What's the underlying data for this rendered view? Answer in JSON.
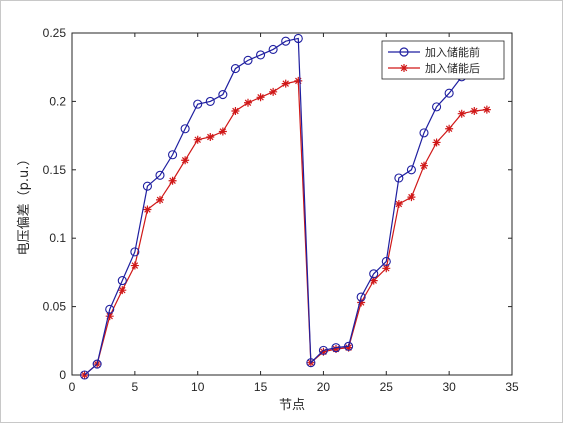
{
  "chart_data": {
    "type": "line",
    "title": "",
    "xlabel": "节点",
    "ylabel": "电压偏差（p.u.）",
    "xlim": [
      0,
      35
    ],
    "ylim": [
      0,
      0.25
    ],
    "xticks": [
      0,
      5,
      10,
      15,
      20,
      25,
      30,
      35
    ],
    "yticks": [
      0,
      0.05,
      0.1,
      0.15,
      0.2,
      0.25
    ],
    "ytick_labels": [
      "0",
      "0.05",
      "0.1",
      "0.15",
      "0.2",
      "0.25"
    ],
    "grid": false,
    "legend_position": "top-right",
    "x": [
      1,
      2,
      3,
      4,
      5,
      6,
      7,
      8,
      9,
      10,
      11,
      12,
      13,
      14,
      15,
      16,
      17,
      18,
      19,
      20,
      21,
      22,
      23,
      24,
      25,
      26,
      27,
      28,
      29,
      30,
      31,
      32,
      33
    ],
    "series": [
      {
        "name": "加入储能前",
        "color": "#1f1fa0",
        "marker": "circle",
        "values": [
          0,
          0.008,
          0.048,
          0.069,
          0.09,
          0.138,
          0.146,
          0.161,
          0.18,
          0.198,
          0.2,
          0.205,
          0.224,
          0.23,
          0.234,
          0.238,
          0.244,
          0.246,
          0.009,
          0.018,
          0.02,
          0.021,
          0.057,
          0.074,
          0.083,
          0.144,
          0.15,
          0.177,
          0.196,
          0.206,
          0.218,
          0.228,
          0.236
        ]
      },
      {
        "name": "加入储能后",
        "color": "#d01818",
        "marker": "star",
        "values": [
          0,
          0.008,
          0.043,
          0.062,
          0.08,
          0.121,
          0.128,
          0.142,
          0.157,
          0.172,
          0.174,
          0.178,
          0.193,
          0.199,
          0.203,
          0.207,
          0.213,
          0.215,
          0.009,
          0.017,
          0.019,
          0.02,
          0.053,
          0.069,
          0.078,
          0.125,
          0.13,
          0.153,
          0.17,
          0.18,
          0.191,
          0.193,
          0.194
        ]
      }
    ]
  }
}
